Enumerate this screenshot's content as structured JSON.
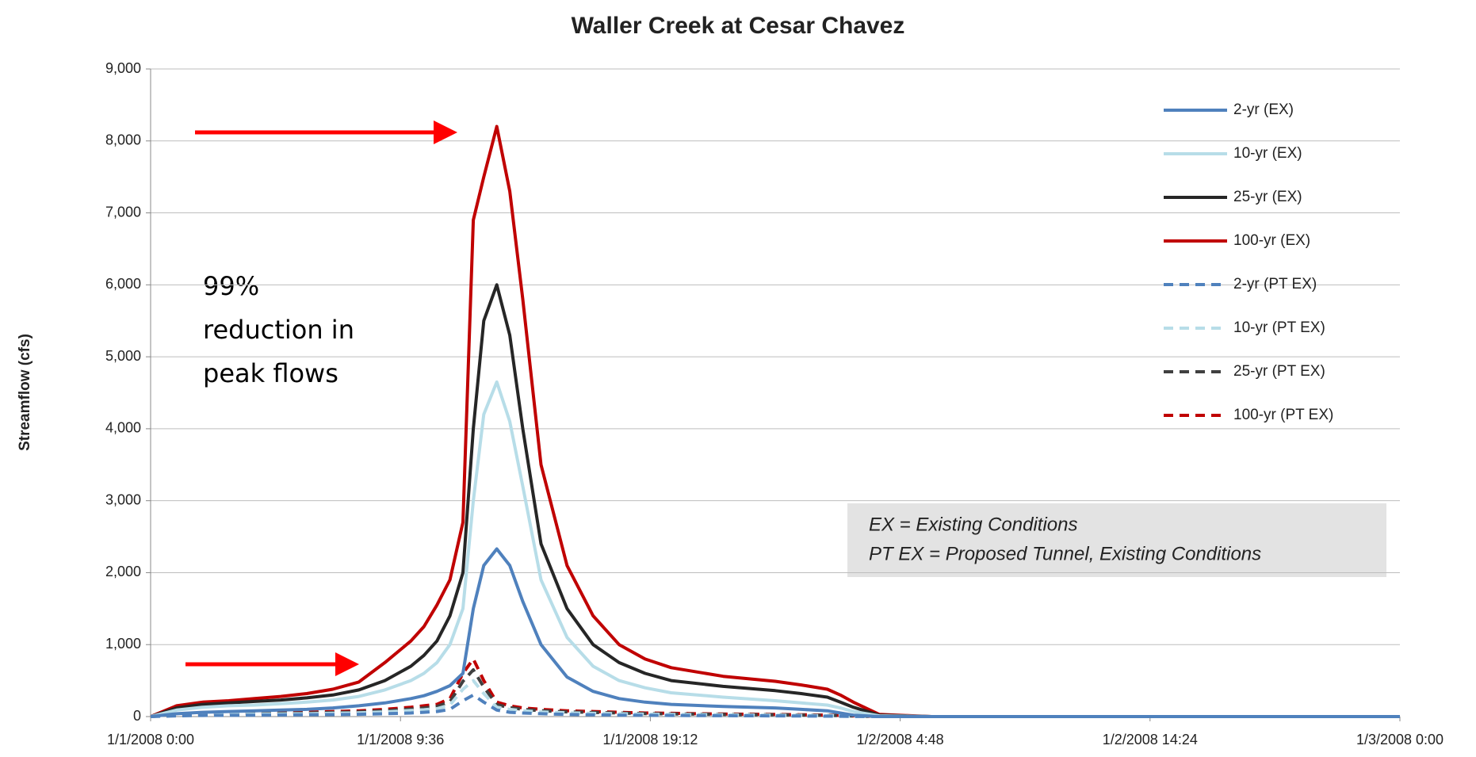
{
  "chart_data": {
    "type": "line",
    "title": "Waller Creek at Cesar Chavez",
    "ylabel": "Streamflow (cfs)",
    "annotation": [
      "99%",
      "reduction in",
      "peak flows"
    ],
    "note": [
      "EX = Existing Conditions",
      "PT EX = Proposed Tunnel, Existing Conditions"
    ],
    "x": [
      0,
      1,
      2,
      3,
      4,
      5,
      6,
      7,
      8,
      9,
      10,
      10.5,
      11,
      11.5,
      12,
      12.4,
      12.8,
      13.3,
      13.8,
      14.3,
      15,
      16,
      17,
      18,
      19,
      20,
      22,
      24,
      25,
      26,
      26.5,
      27,
      28,
      30,
      48
    ],
    "xlim": [
      0,
      48
    ],
    "xticks": [
      {
        "value": 0,
        "label": "1/1/2008 0:00"
      },
      {
        "value": 9.6,
        "label": "1/1/2008 9:36"
      },
      {
        "value": 19.2,
        "label": "1/1/2008 19:12"
      },
      {
        "value": 28.8,
        "label": "1/2/2008 4:48"
      },
      {
        "value": 38.4,
        "label": "1/2/2008 14:24"
      },
      {
        "value": 48,
        "label": "1/3/2008 0:00"
      }
    ],
    "ylim": [
      0,
      9000
    ],
    "yticks": [
      0,
      {
        "value": 1000,
        "label": "1,000"
      },
      {
        "value": 2000,
        "label": "2,000"
      },
      {
        "value": 3000,
        "label": "3,000"
      },
      {
        "value": 4000,
        "label": "4,000"
      },
      {
        "value": 5000,
        "label": "5,000"
      },
      {
        "value": 6000,
        "label": "6,000"
      },
      {
        "value": 7000,
        "label": "7,000"
      },
      {
        "value": 8000,
        "label": "8,000"
      },
      {
        "value": 9000,
        "label": "9,000"
      }
    ],
    "grid": true,
    "legend": "upper right",
    "series": [
      {
        "name": "2-yr (EX)",
        "color": "#4f81bd",
        "style": "solid",
        "values": [
          0,
          40,
          60,
          70,
          80,
          90,
          100,
          120,
          150,
          190,
          250,
          290,
          350,
          430,
          600,
          1500,
          2100,
          2330,
          2100,
          1600,
          1000,
          550,
          350,
          250,
          200,
          170,
          140,
          120,
          100,
          80,
          50,
          20,
          0,
          0,
          0
        ]
      },
      {
        "name": "10-yr (EX)",
        "color": "#b7dde8",
        "style": "solid",
        "values": [
          0,
          90,
          130,
          150,
          160,
          180,
          200,
          230,
          280,
          370,
          500,
          600,
          750,
          1000,
          1500,
          3000,
          4200,
          4650,
          4100,
          3200,
          1900,
          1100,
          700,
          500,
          400,
          330,
          270,
          220,
          190,
          160,
          120,
          70,
          10,
          0,
          0
        ]
      },
      {
        "name": "25-yr (EX)",
        "color": "#262626",
        "style": "solid",
        "values": [
          0,
          120,
          170,
          190,
          210,
          230,
          260,
          300,
          370,
          500,
          700,
          850,
          1050,
          1400,
          2000,
          4000,
          5500,
          6000,
          5300,
          4000,
          2400,
          1500,
          1000,
          750,
          600,
          500,
          420,
          360,
          320,
          270,
          200,
          130,
          20,
          0,
          0
        ]
      },
      {
        "name": "100-yr (EX)",
        "color": "#c00000",
        "style": "solid",
        "values": [
          0,
          150,
          200,
          220,
          250,
          280,
          320,
          380,
          480,
          750,
          1050,
          1250,
          1550,
          1900,
          2700,
          6900,
          7500,
          8200,
          7300,
          5800,
          3500,
          2100,
          1400,
          1000,
          800,
          680,
          560,
          490,
          440,
          380,
          300,
          200,
          30,
          0,
          0
        ]
      },
      {
        "name": "2-yr (PT EX)",
        "color": "#4f81bd",
        "style": "dashed",
        "values": [
          0,
          10,
          15,
          18,
          20,
          22,
          25,
          28,
          32,
          40,
          50,
          60,
          70,
          100,
          220,
          300,
          200,
          90,
          60,
          50,
          40,
          30,
          25,
          20,
          18,
          15,
          12,
          10,
          8,
          6,
          4,
          2,
          0,
          0,
          0
        ]
      },
      {
        "name": "10-yr (PT EX)",
        "color": "#b7dde8",
        "style": "dashed",
        "values": [
          0,
          20,
          25,
          30,
          33,
          36,
          40,
          46,
          52,
          65,
          85,
          95,
          110,
          160,
          380,
          500,
          320,
          130,
          100,
          80,
          65,
          52,
          45,
          40,
          33,
          30,
          24,
          20,
          17,
          13,
          10,
          6,
          0,
          0,
          0
        ]
      },
      {
        "name": "25-yr (PT EX)",
        "color": "#404040",
        "style": "dashed",
        "values": [
          0,
          25,
          32,
          37,
          41,
          45,
          50,
          57,
          65,
          82,
          105,
          120,
          140,
          205,
          490,
          650,
          410,
          165,
          125,
          100,
          82,
          65,
          57,
          50,
          41,
          37,
          30,
          25,
          21,
          16,
          12,
          8,
          0,
          0,
          0
        ]
      },
      {
        "name": "100-yr (PT EX)",
        "color": "#c00000",
        "style": "dashed",
        "values": [
          0,
          30,
          40,
          45,
          50,
          55,
          60,
          70,
          80,
          100,
          130,
          150,
          170,
          250,
          600,
          800,
          500,
          200,
          150,
          120,
          100,
          80,
          70,
          60,
          50,
          45,
          35,
          30,
          25,
          20,
          15,
          10,
          0,
          0,
          0
        ]
      }
    ]
  }
}
